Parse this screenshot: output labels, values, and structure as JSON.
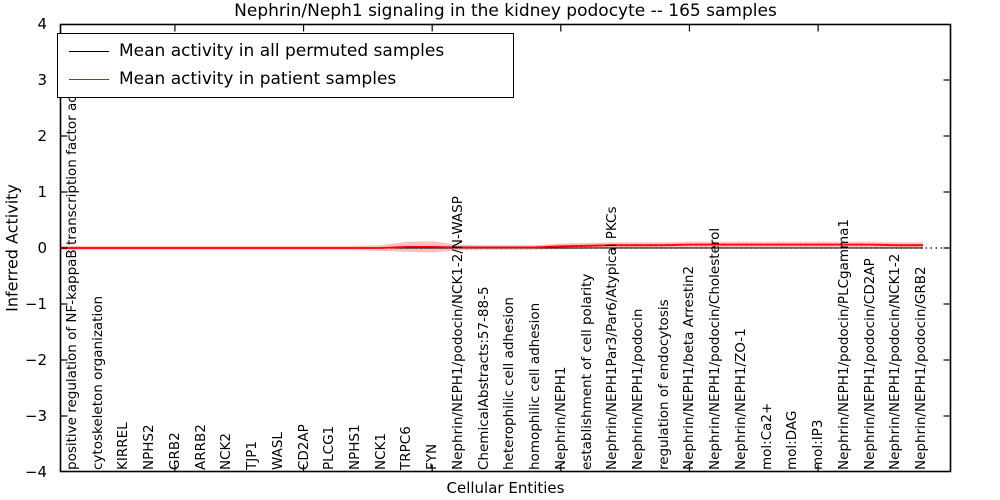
{
  "figure": {
    "title": "Nephrin/Neph1 signaling in the kidney podocyte -- 165 samples",
    "xlabel": "Cellular Entities",
    "ylabel": "Inferred Activity"
  },
  "legend": {
    "entries": [
      {
        "label": "Mean activity in all permuted samples",
        "color": "#000000"
      },
      {
        "label": "Mean activity in patient samples",
        "color": "#ff0000"
      }
    ]
  },
  "chart_data": {
    "type": "line",
    "title": "Nephrin/Neph1 signaling in the kidney podocyte -- 165 samples",
    "xlabel": "Cellular Entities",
    "ylabel": "Inferred Activity",
    "ylim": [
      -4,
      4
    ],
    "yticks": [
      4,
      3,
      2,
      1,
      0,
      -1,
      -2,
      -3,
      -4
    ],
    "xtick_category_indices": [
      4,
      9,
      14,
      19,
      24,
      29
    ],
    "grid": "dotted horizontal line at y=0 only",
    "legend_position": "upper left",
    "zero_line_style": "black dotted",
    "categories": [
      "positive regulation of NF-kappaB transcription factor activity",
      "cytoskeleton organization",
      "KIRREL",
      "NPHS2",
      "GRB2",
      "ARRB2",
      "NCK2",
      "TJP1",
      "WASL",
      "CD2AP",
      "PLCG1",
      "NPHS1",
      "NCK1",
      "TRPC6",
      "FYN",
      "Nephrin/NEPH1/podocin/NCK1-2/N-WASP",
      "ChemicalAbstracts:57-88-5",
      "heterophilic cell adhesion",
      "homophilic cell adhesion",
      "Nephrin/NEPH1",
      "establishment of cell polarity",
      "Nephrin/NEPH1Par3/Par6/Atypical PKCs",
      "Nephrin/NEPH1/podocin",
      "regulation of endocytosis",
      "Nephrin/NEPH1/beta Arrestin2",
      "Nephrin/NEPH1/podocin/Cholesterol",
      "Nephrin/NEPH1/ZO-1",
      "mol:Ca2+",
      "mol:DAG",
      "mol:IP3",
      "Nephrin/NEPH1/podocin/PLCgamma1",
      "Nephrin/NEPH1/podocin/CD2AP",
      "Nephrin/NEPH1/podocin/NCK1-2",
      "Nephrin/NEPH1/podocin/GRB2"
    ],
    "series": [
      {
        "name": "Mean activity in all permuted samples",
        "color": "#000000",
        "values": [
          0,
          0,
          0,
          0,
          0,
          0,
          0,
          0,
          0,
          0,
          0,
          0,
          0,
          0,
          0,
          0,
          0,
          0,
          0,
          0,
          0,
          0,
          0,
          0,
          0,
          0,
          0,
          0,
          0,
          0,
          0,
          0,
          0,
          0
        ]
      },
      {
        "name": "Mean activity in patient samples",
        "color": "#ff0000",
        "band_color": "rgba(255,0,0,0.25)",
        "values": [
          0,
          0,
          0,
          0,
          0,
          0,
          0,
          0,
          0,
          0,
          0,
          0,
          0,
          0.02,
          0.02,
          0.01,
          0.01,
          0.01,
          0.01,
          0.03,
          0.04,
          0.05,
          0.05,
          0.05,
          0.06,
          0.06,
          0.06,
          0.06,
          0.06,
          0.06,
          0.06,
          0.06,
          0.05,
          0.05
        ],
        "band_halfwidth": [
          0.04,
          0.04,
          0.04,
          0.04,
          0.04,
          0.04,
          0.04,
          0.04,
          0.04,
          0.04,
          0.04,
          0.04,
          0.05,
          0.09,
          0.1,
          0.05,
          0.04,
          0.04,
          0.04,
          0.05,
          0.05,
          0.05,
          0.05,
          0.05,
          0.05,
          0.05,
          0.05,
          0.05,
          0.05,
          0.05,
          0.05,
          0.05,
          0.05,
          0.05
        ]
      }
    ]
  }
}
